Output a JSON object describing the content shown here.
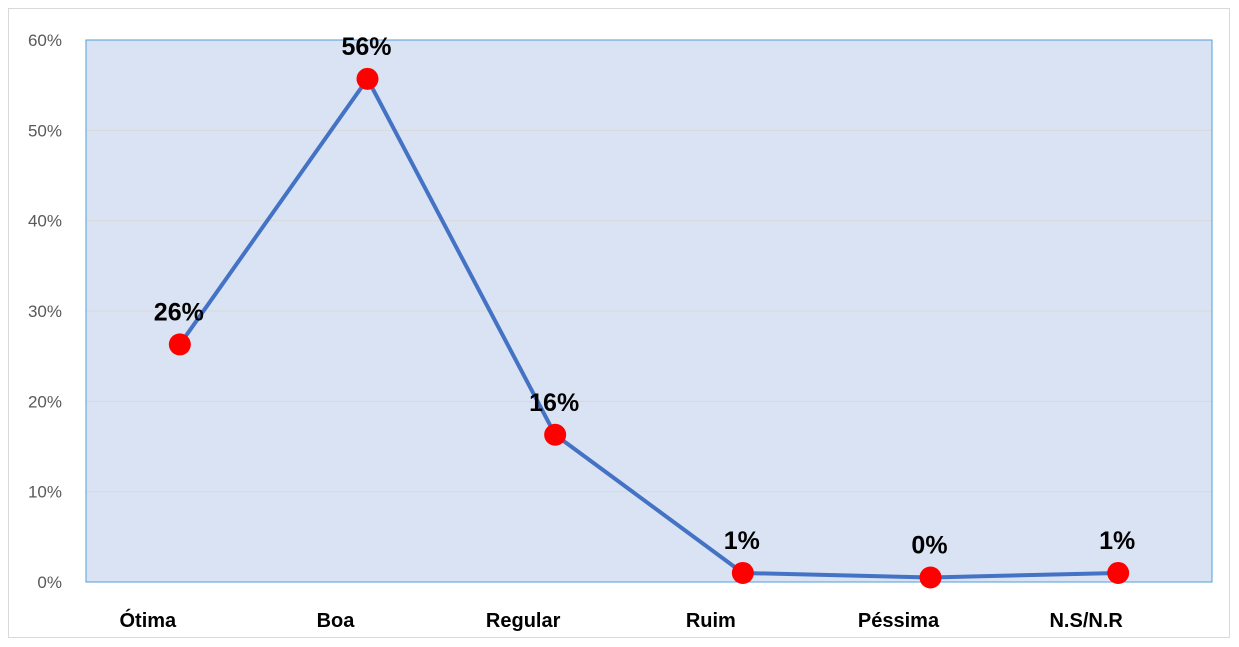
{
  "chart_data": {
    "type": "line",
    "title": "",
    "xlabel": "",
    "ylabel": "",
    "categories": [
      "Ótima",
      "Boa",
      "Regular",
      "Ruim",
      "Péssima",
      "N.S/N.R"
    ],
    "values": [
      26.3,
      55.7,
      16.3,
      1.0,
      0.5,
      1.0
    ],
    "data_labels": [
      "26%",
      "56%",
      "16%",
      "1%",
      "0%",
      "1%"
    ],
    "ylim": [
      0,
      60
    ],
    "yticks": [
      0,
      10,
      20,
      30,
      40,
      50,
      60
    ],
    "ytick_labels": [
      "0%",
      "10%",
      "20%",
      "30%",
      "40%",
      "50%",
      "60%"
    ],
    "grid": true,
    "legend": "none",
    "colors": {
      "line": "#4472c4",
      "marker": "#ff0000",
      "plot_background": "#dae3f3",
      "plot_border": "#4f9fd8",
      "gridline": "#d9d9d9"
    }
  }
}
